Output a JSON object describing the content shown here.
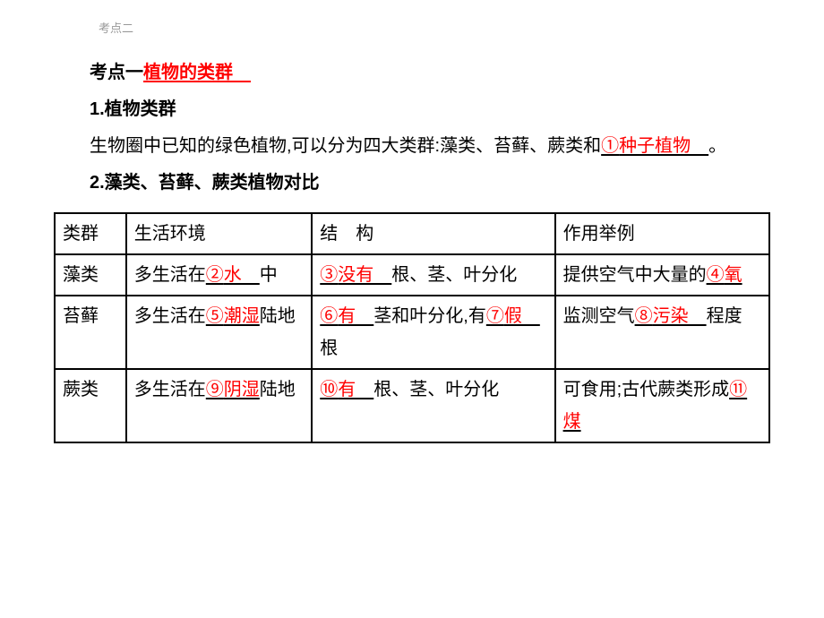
{
  "tab": {
    "label": "考点二"
  },
  "heading": {
    "prefix": "考点一",
    "title": "植物的类群　"
  },
  "section1": {
    "number": "1",
    "title": ".植物类群",
    "body_prefix": "生物圈中已知的绿色植物,可以分为四大类群:藻类、苔藓、蕨类和",
    "fill1_num": "①",
    "fill1_text": "种子植物　",
    "body_suffix": "。"
  },
  "section2": {
    "number": "2",
    "title": ".藻类、苔藓、蕨类植物对比"
  },
  "table": {
    "headers": {
      "group": "类群",
      "env": "生活环境",
      "struct_a": "结",
      "struct_b": "构",
      "use": "作用举例"
    },
    "rows": [
      {
        "group": "藻类",
        "env_prefix": "多生活在",
        "env_num": "②",
        "env_fill": "水　",
        "env_suffix": "中",
        "struct_num1": "③",
        "struct_fill1": "没有　",
        "struct_mid": "根、茎、叶分化",
        "use_prefix": "提供空气中大量的",
        "use_num": "④",
        "use_fill": "氧"
      },
      {
        "group": "苔藓",
        "env_prefix": "多生活在",
        "env_num": "⑤",
        "env_fill": "潮湿",
        "env_suffix": "陆地",
        "struct_num1": "⑥",
        "struct_fill1": "有　",
        "struct_mid": "茎和叶分化,有",
        "struct_num2": "⑦",
        "struct_fill2": "假　",
        "struct_suffix": "根",
        "use_prefix": "监测空气",
        "use_num": "⑧",
        "use_fill": "污染　",
        "use_suffix": "程度"
      },
      {
        "group": "蕨类",
        "env_prefix": "多生活在",
        "env_num": "⑨",
        "env_fill": "阴湿",
        "env_suffix": "陆地",
        "struct_num1": "⑩",
        "struct_fill1": "有　",
        "struct_mid": "根、茎、叶分化",
        "use_prefix": "可食用;古代蕨类形成",
        "use_num": "⑪",
        "use_fill": "煤"
      }
    ]
  },
  "colors": {
    "red": "#ff0000",
    "black": "#000000",
    "gray": "#999999",
    "bg": "#ffffff"
  }
}
